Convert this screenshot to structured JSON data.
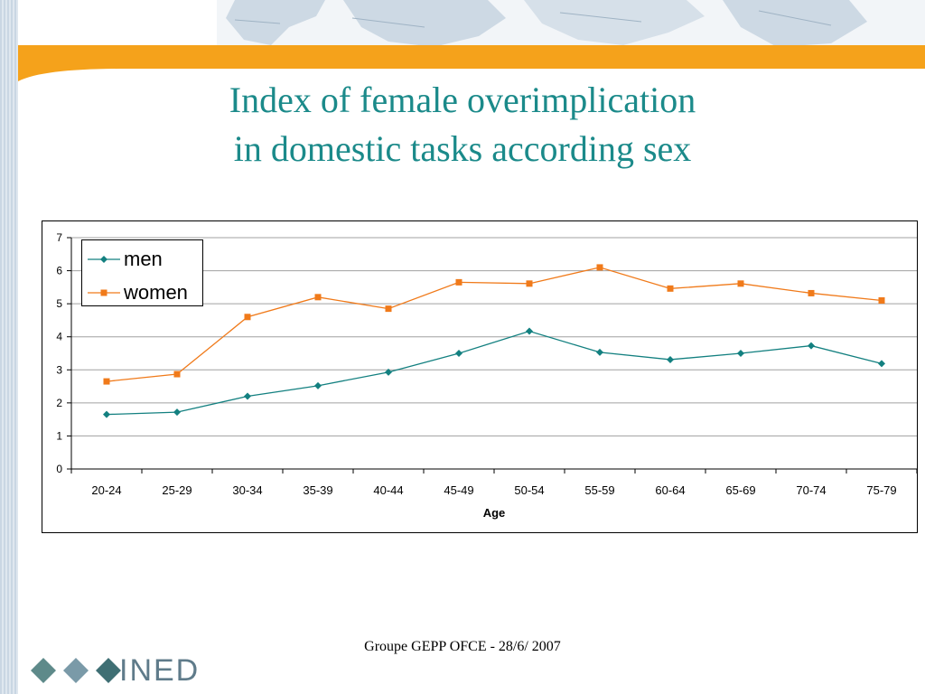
{
  "slide": {
    "title_line1": "Index of female overimplication",
    "title_line2": "in domestic tasks according sex",
    "footer": "Groupe GEPP OFCE - 28/6/ 2007",
    "logo_text": "INED"
  },
  "colors": {
    "title": "#1b8a8a",
    "orange_band": "#f5a21b",
    "men": "#138080",
    "women": "#f07a1a"
  },
  "chart_data": {
    "type": "line",
    "title": "",
    "xlabel": "Age",
    "ylabel": "",
    "ylim": [
      0,
      7
    ],
    "yticks": [
      0,
      1,
      2,
      3,
      4,
      5,
      6,
      7
    ],
    "grid": true,
    "legend": "top-left",
    "categories": [
      "20-24",
      "25-29",
      "30-34",
      "35-39",
      "40-44",
      "45-49",
      "50-54",
      "55-59",
      "60-64",
      "65-69",
      "70-74",
      "75-79"
    ],
    "series": [
      {
        "name": "men",
        "marker": "diamond",
        "color": "#138080",
        "values": [
          1.65,
          1.72,
          2.2,
          2.52,
          2.93,
          3.5,
          4.17,
          3.53,
          3.31,
          3.5,
          3.73,
          3.19
        ]
      },
      {
        "name": "women",
        "marker": "square",
        "color": "#f07a1a",
        "values": [
          2.65,
          2.87,
          4.6,
          5.2,
          4.85,
          5.65,
          5.61,
          6.1,
          5.46,
          5.61,
          5.32,
          5.1
        ]
      }
    ]
  }
}
